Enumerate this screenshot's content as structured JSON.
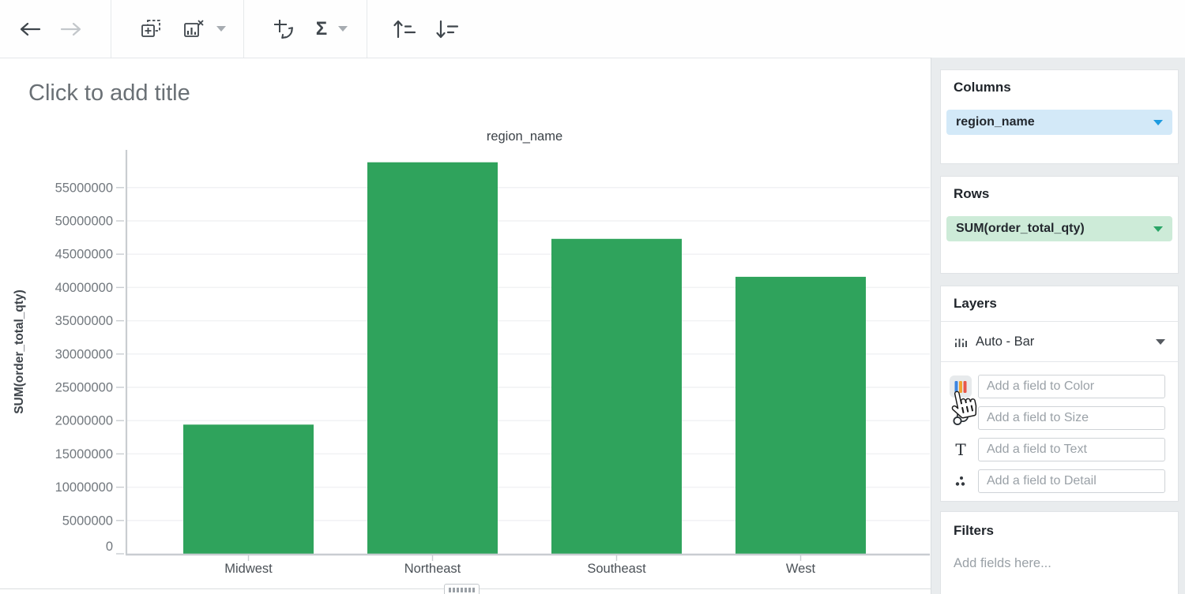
{
  "toolbar": {
    "buttons": [
      "back",
      "forward",
      "add-chart",
      "chart-type-remove",
      "swap-axes",
      "aggregate",
      "sort-ascending",
      "sort-descending"
    ],
    "aggregate_glyph": "Σ"
  },
  "canvas": {
    "title_placeholder": "Click to add title"
  },
  "chart_data": {
    "type": "bar",
    "title": "region_name",
    "xlabel": "region_name",
    "ylabel": "SUM(order_total_qty)",
    "categories": [
      "Midwest",
      "Northeast",
      "Southeast",
      "West"
    ],
    "values": [
      19400000,
      58800000,
      47300000,
      41600000
    ],
    "y_ticks": [
      0,
      5000000,
      10000000,
      15000000,
      20000000,
      25000000,
      30000000,
      35000000,
      40000000,
      45000000,
      50000000,
      55000000
    ],
    "ylim": [
      0,
      60500000
    ],
    "bar_color": "#2fa35c",
    "grid": true,
    "legend": "none"
  },
  "panel": {
    "columns": {
      "title": "Columns",
      "pill": "region_name"
    },
    "rows": {
      "title": "Rows",
      "pill": "SUM(order_total_qty)"
    },
    "layers": {
      "title": "Layers",
      "layer_type": "Auto - Bar",
      "fields": [
        {
          "icon": "color-icon",
          "placeholder": "Add a field to Color"
        },
        {
          "icon": "size-icon",
          "placeholder": "Add a field to Size"
        },
        {
          "icon": "text-icon",
          "glyph": "T",
          "placeholder": "Add a field to Text"
        },
        {
          "icon": "detail-icon",
          "placeholder": "Add a field to Detail"
        }
      ]
    },
    "filters": {
      "title": "Filters",
      "placeholder": "Add fields here..."
    }
  },
  "colors": {
    "bar_green": "#2fa35c",
    "columns_pill_bg": "#d3e9f8",
    "columns_caret": "#1e9be0",
    "rows_pill_bg": "#cdebd8",
    "rows_caret": "#2aa567",
    "panel_bg": "#e9ecee",
    "color_icon_bars": [
      "#3d86e0",
      "#f0a330",
      "#e8574a"
    ]
  }
}
